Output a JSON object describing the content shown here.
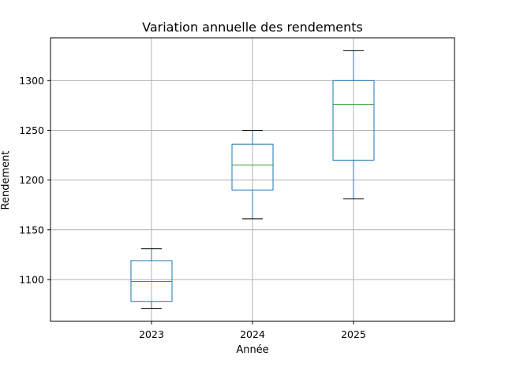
{
  "chart_data": {
    "type": "boxplot",
    "title": "Variation annuelle des rendements",
    "xlabel": "Année",
    "ylabel": "Rendement",
    "categories": [
      "2023",
      "2024",
      "2025"
    ],
    "boxes": [
      {
        "category": "2023",
        "whisker_low": 1071,
        "q1": 1078,
        "median": 1098,
        "q3": 1119,
        "whisker_high": 1131
      },
      {
        "category": "2024",
        "whisker_low": 1161,
        "q1": 1190,
        "median": 1215,
        "q3": 1236,
        "whisker_high": 1250
      },
      {
        "category": "2025",
        "whisker_low": 1181,
        "q1": 1220,
        "median": 1276,
        "q3": 1300,
        "whisker_high": 1330
      }
    ],
    "ylim": [
      1058,
      1343
    ],
    "yticks": [
      1100,
      1150,
      1200,
      1250,
      1300
    ],
    "grid": true,
    "colors": {
      "box": "#1f77b4",
      "median": "#2ca02c",
      "whisker_cap": "#000000",
      "grid": "#b0b0b0"
    }
  }
}
